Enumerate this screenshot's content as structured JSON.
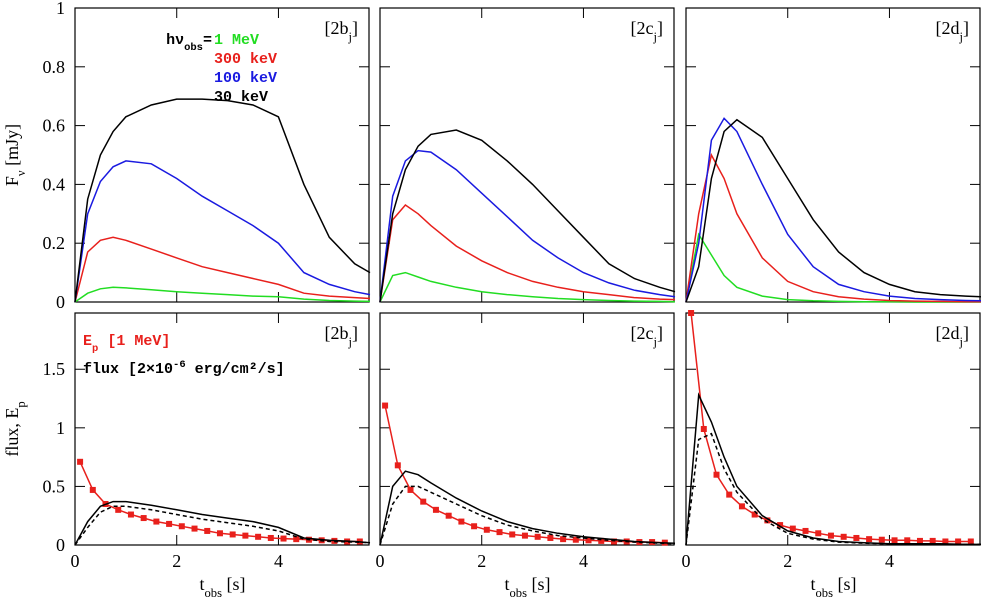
{
  "chart_data": [
    {
      "type": "line",
      "panel_label": [
        {
          "t": "[2b"
        },
        {
          "sub": "j"
        },
        {
          "t": "]"
        }
      ],
      "ylabel": [
        {
          "t": "F"
        },
        {
          "sub": "ν"
        },
        {
          "t": " [mJy]"
        }
      ],
      "legend_title": [
        {
          "t": "hν"
        },
        {
          "sub": "obs"
        },
        {
          "t": "="
        }
      ],
      "x": [
        0,
        0.25,
        0.5,
        0.75,
        1,
        1.5,
        2,
        2.5,
        3,
        3.5,
        4,
        4.5,
        5,
        5.5,
        5.8
      ],
      "xlim": [
        0,
        5.8
      ],
      "ylim": [
        0,
        1
      ],
      "yticks": [
        0,
        0.2,
        0.4,
        0.6,
        0.8,
        1
      ],
      "series": [
        {
          "name": "1 MeV",
          "color": "#22dd22",
          "values": [
            0,
            0.03,
            0.045,
            0.05,
            0.048,
            0.042,
            0.035,
            0.03,
            0.025,
            0.02,
            0.018,
            0.01,
            0.005,
            0.003,
            0.002
          ]
        },
        {
          "name": "300 keV",
          "color": "#e8201c",
          "values": [
            0,
            0.17,
            0.21,
            0.22,
            0.21,
            0.18,
            0.15,
            0.12,
            0.1,
            0.08,
            0.06,
            0.03,
            0.02,
            0.015,
            0.012
          ]
        },
        {
          "name": "100 keV",
          "color": "#1a1ae0",
          "values": [
            0,
            0.3,
            0.41,
            0.46,
            0.48,
            0.47,
            0.42,
            0.36,
            0.31,
            0.26,
            0.2,
            0.1,
            0.06,
            0.035,
            0.025
          ]
        },
        {
          "name": "30 keV",
          "color": "#000000",
          "values": [
            0,
            0.35,
            0.5,
            0.58,
            0.63,
            0.67,
            0.69,
            0.69,
            0.685,
            0.67,
            0.63,
            0.4,
            0.22,
            0.13,
            0.1
          ]
        }
      ]
    },
    {
      "type": "line",
      "panel_label": [
        {
          "t": "[2c"
        },
        {
          "sub": "j"
        },
        {
          "t": "]"
        }
      ],
      "x": [
        0,
        0.25,
        0.5,
        0.75,
        1,
        1.5,
        2,
        2.5,
        3,
        3.5,
        4,
        4.5,
        5,
        5.5,
        5.8
      ],
      "xlim": [
        0,
        5.8
      ],
      "ylim": [
        0,
        1
      ],
      "series": [
        {
          "color": "#22dd22",
          "values": [
            0,
            0.09,
            0.1,
            0.085,
            0.07,
            0.05,
            0.035,
            0.025,
            0.018,
            0.012,
            0.008,
            0.005,
            0.003,
            0.002,
            0.001
          ]
        },
        {
          "color": "#e8201c",
          "values": [
            0,
            0.28,
            0.33,
            0.3,
            0.26,
            0.19,
            0.14,
            0.1,
            0.07,
            0.05,
            0.035,
            0.025,
            0.015,
            0.01,
            0.008
          ]
        },
        {
          "color": "#1a1ae0",
          "values": [
            0,
            0.36,
            0.48,
            0.515,
            0.51,
            0.45,
            0.37,
            0.29,
            0.21,
            0.15,
            0.1,
            0.065,
            0.04,
            0.025,
            0.018
          ]
        },
        {
          "color": "#000000",
          "values": [
            0,
            0.3,
            0.45,
            0.53,
            0.57,
            0.585,
            0.55,
            0.48,
            0.4,
            0.31,
            0.22,
            0.13,
            0.08,
            0.05,
            0.035
          ]
        }
      ]
    },
    {
      "type": "line",
      "panel_label": [
        {
          "t": "[2d"
        },
        {
          "sub": "j"
        },
        {
          "t": "]"
        }
      ],
      "x": [
        0,
        0.25,
        0.5,
        0.75,
        1,
        1.5,
        2,
        2.5,
        3,
        3.5,
        4,
        4.5,
        5,
        5.5,
        5.8
      ],
      "xlim": [
        0,
        5.8
      ],
      "ylim": [
        0,
        1
      ],
      "series": [
        {
          "color": "#22dd22",
          "values": [
            0,
            0.23,
            0.16,
            0.09,
            0.05,
            0.02,
            0.008,
            0.004,
            0.002,
            0.001,
            0.001,
            0,
            0,
            0,
            0
          ]
        },
        {
          "color": "#e8201c",
          "values": [
            0,
            0.3,
            0.5,
            0.42,
            0.3,
            0.15,
            0.07,
            0.035,
            0.018,
            0.01,
            0.005,
            0.003,
            0.002,
            0.001,
            0.001
          ]
        },
        {
          "color": "#1a1ae0",
          "values": [
            0,
            0.2,
            0.55,
            0.625,
            0.58,
            0.4,
            0.23,
            0.12,
            0.06,
            0.035,
            0.02,
            0.012,
            0.008,
            0.005,
            0.004
          ]
        },
        {
          "color": "#000000",
          "values": [
            0,
            0.12,
            0.42,
            0.58,
            0.62,
            0.56,
            0.42,
            0.28,
            0.17,
            0.1,
            0.06,
            0.035,
            0.025,
            0.02,
            0.018
          ]
        }
      ]
    },
    {
      "type": "line",
      "panel_label": [
        {
          "t": "[2b"
        },
        {
          "sub": "j"
        },
        {
          "t": "]"
        }
      ],
      "ylabel": [
        {
          "t": "flux, E"
        },
        {
          "sub": "p"
        }
      ],
      "xlabel": [
        {
          "t": "t"
        },
        {
          "sub": "obs"
        },
        {
          "t": " [s]"
        }
      ],
      "x": [
        0,
        0.25,
        0.5,
        0.75,
        1,
        1.5,
        2,
        2.5,
        3,
        3.5,
        4,
        4.5,
        5,
        5.5,
        5.8
      ],
      "xlim": [
        0,
        5.8
      ],
      "ylim": [
        0,
        1.98
      ],
      "xticks": [
        0,
        2,
        4
      ],
      "yticks": [
        0,
        0.5,
        1,
        1.5
      ],
      "series": [
        {
          "name": [
            {
              "t": "E"
            },
            {
              "sub": "p"
            },
            {
              "t": " [1 MeV]"
            }
          ],
          "color": "#e8201c",
          "markers": true,
          "x": [
            0.1,
            0.35,
            0.6,
            0.85,
            1.1,
            1.35,
            1.6,
            1.85,
            2.1,
            2.35,
            2.6,
            2.85,
            3.1,
            3.35,
            3.6,
            3.85,
            4.1,
            4.35,
            4.6,
            4.85,
            5.1,
            5.35,
            5.6
          ],
          "values": [
            0.71,
            0.47,
            0.35,
            0.3,
            0.26,
            0.23,
            0.2,
            0.18,
            0.16,
            0.14,
            0.12,
            0.1,
            0.09,
            0.08,
            0.07,
            0.06,
            0.055,
            0.05,
            0.045,
            0.04,
            0.035,
            0.03,
            0.03
          ]
        },
        {
          "name": [
            {
              "t": "flux [2×10"
            },
            {
              "sup": "-6"
            },
            {
              "t": " erg/cm²/s]"
            }
          ],
          "color": "#000000",
          "values": [
            0,
            0.2,
            0.33,
            0.37,
            0.37,
            0.34,
            0.3,
            0.26,
            0.23,
            0.2,
            0.15,
            0.06,
            0.04,
            0.03,
            0.02
          ]
        },
        {
          "color": "#000000",
          "dash": true,
          "values": [
            0,
            0.15,
            0.28,
            0.33,
            0.33,
            0.3,
            0.26,
            0.22,
            0.19,
            0.16,
            0.12,
            0.05,
            0.03,
            0.025,
            0.02
          ]
        }
      ]
    },
    {
      "type": "line",
      "panel_label": [
        {
          "t": "[2c"
        },
        {
          "sub": "j"
        },
        {
          "t": "]"
        }
      ],
      "xlabel": [
        {
          "t": "t"
        },
        {
          "sub": "obs"
        },
        {
          "t": " [s]"
        }
      ],
      "x": [
        0,
        0.25,
        0.5,
        0.75,
        1,
        1.5,
        2,
        2.5,
        3,
        3.5,
        4,
        4.5,
        5,
        5.5,
        5.8
      ],
      "xlim": [
        0,
        5.8
      ],
      "ylim": [
        0,
        1.98
      ],
      "xticks": [
        0,
        2,
        4
      ],
      "series": [
        {
          "color": "#e8201c",
          "markers": true,
          "x": [
            0.1,
            0.35,
            0.6,
            0.85,
            1.1,
            1.35,
            1.6,
            1.85,
            2.1,
            2.35,
            2.6,
            2.85,
            3.1,
            3.35,
            3.6,
            3.85,
            4.1,
            4.35,
            4.6,
            4.85,
            5.1,
            5.35,
            5.6
          ],
          "values": [
            1.19,
            0.68,
            0.47,
            0.37,
            0.3,
            0.25,
            0.2,
            0.16,
            0.13,
            0.11,
            0.09,
            0.08,
            0.07,
            0.06,
            0.05,
            0.045,
            0.04,
            0.035,
            0.03,
            0.03,
            0.025,
            0.025,
            0.02
          ]
        },
        {
          "color": "#000000",
          "values": [
            0,
            0.5,
            0.63,
            0.6,
            0.53,
            0.4,
            0.29,
            0.2,
            0.14,
            0.1,
            0.07,
            0.05,
            0.03,
            0.02,
            0.015
          ]
        },
        {
          "color": "#000000",
          "dash": true,
          "values": [
            0,
            0.35,
            0.5,
            0.5,
            0.45,
            0.35,
            0.25,
            0.17,
            0.12,
            0.08,
            0.06,
            0.04,
            0.025,
            0.015,
            0.01
          ]
        }
      ]
    },
    {
      "type": "line",
      "panel_label": [
        {
          "t": "[2d"
        },
        {
          "sub": "j"
        },
        {
          "t": "]"
        }
      ],
      "xlabel": [
        {
          "t": "t"
        },
        {
          "sub": "obs"
        },
        {
          "t": " [s]"
        }
      ],
      "x": [
        0,
        0.25,
        0.5,
        0.75,
        1,
        1.5,
        2,
        2.5,
        3,
        3.5,
        4,
        4.5,
        5,
        5.5,
        5.8
      ],
      "xlim": [
        0,
        5.8
      ],
      "ylim": [
        0,
        1.98
      ],
      "xticks": [
        0,
        2,
        4
      ],
      "series": [
        {
          "color": "#e8201c",
          "markers": true,
          "x": [
            0.1,
            0.35,
            0.6,
            0.85,
            1.1,
            1.35,
            1.6,
            1.85,
            2.1,
            2.35,
            2.6,
            2.85,
            3.1,
            3.35,
            3.6,
            3.85,
            4.1,
            4.35,
            4.6,
            4.85,
            5.1,
            5.35,
            5.6
          ],
          "values": [
            1.98,
            0.99,
            0.6,
            0.43,
            0.33,
            0.26,
            0.21,
            0.17,
            0.14,
            0.12,
            0.1,
            0.08,
            0.07,
            0.06,
            0.05,
            0.045,
            0.04,
            0.04,
            0.035,
            0.035,
            0.03,
            0.03,
            0.03
          ]
        },
        {
          "color": "#000000",
          "values": [
            0,
            1.28,
            1.05,
            0.75,
            0.5,
            0.25,
            0.12,
            0.06,
            0.03,
            0.02,
            0.01,
            0.01,
            0.01,
            0.005,
            0.005
          ]
        },
        {
          "color": "#000000",
          "dash": true,
          "values": [
            0,
            0.9,
            0.95,
            0.65,
            0.45,
            0.22,
            0.1,
            0.05,
            0.025,
            0.015,
            0.01,
            0.01,
            0.005,
            0.005,
            0.005
          ]
        }
      ]
    }
  ]
}
